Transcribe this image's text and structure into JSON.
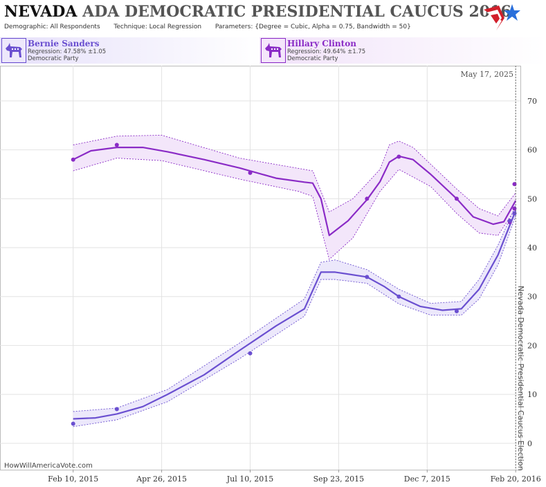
{
  "header": {
    "title_state": "NEVADA",
    "title_rest": "ADA DEMOCRATIC PRESIDENTIAL CAUCUS 2016",
    "demographic_label": "Demographic:",
    "demographic_value": "All Respondents",
    "technique_label": "Technique:",
    "technique_value": "Local Regression",
    "parameters_label": "Parameters:",
    "parameters_value": "{Degree = Cubic, Alpha = 0.75, Bandwidth = 50}"
  },
  "candidates": [
    {
      "name": "Bernie Sanders",
      "regression": "Regression: 47.58% ±1.05",
      "party": "Democratic Party",
      "color": "#6a4fd0"
    },
    {
      "name": "Hillary Clinton",
      "regression": "Regression: 49.64% ±1.75",
      "party": "Democratic Party",
      "color": "#8a2bc6"
    }
  ],
  "watermark": "HowWillAmericaVote.com",
  "chart_data": {
    "type": "line",
    "date_label": "May 17, 2025",
    "event_label": "Nevada Democratic Presidential Caucus Election",
    "event_date": "2016-02-20",
    "x_domain": [
      "2014-12-10",
      "2016-02-24"
    ],
    "xticks": [
      {
        "date": "2015-02-10",
        "label": "Feb 10, 2015"
      },
      {
        "date": "2015-04-26",
        "label": "Apr 26, 2015"
      },
      {
        "date": "2015-07-10",
        "label": "Jul 10, 2015"
      },
      {
        "date": "2015-09-23",
        "label": "Sep 23, 2015"
      },
      {
        "date": "2015-12-07",
        "label": "Dec 7, 2015"
      },
      {
        "date": "2016-02-20",
        "label": "Feb 20, 2016"
      }
    ],
    "ylim": [
      -5.4,
      77.2
    ],
    "yticks": [
      0,
      10,
      20,
      30,
      40,
      50,
      60,
      70
    ],
    "grid": true,
    "series": [
      {
        "name": "Hillary Clinton",
        "color": "#8a2bc6",
        "band_color": "#f3e6fa",
        "points": [
          {
            "date": "2015-02-10",
            "value": 58
          },
          {
            "date": "2015-03-19",
            "value": 61
          },
          {
            "date": "2015-07-10",
            "value": 55.3
          },
          {
            "date": "2015-10-17",
            "value": 50
          },
          {
            "date": "2015-11-13",
            "value": 58.6
          },
          {
            "date": "2016-01-01",
            "value": 50
          },
          {
            "date": "2016-02-15",
            "value": 45.2
          },
          {
            "date": "2016-02-19",
            "value": 53
          },
          {
            "date": "2016-02-19",
            "value": 48
          },
          {
            "date": "2016-02-19",
            "value": 47
          }
        ],
        "fit": [
          [
            "2015-02-10",
            58.0
          ],
          [
            "2015-02-25",
            59.8
          ],
          [
            "2015-03-19",
            60.5
          ],
          [
            "2015-04-10",
            60.5
          ],
          [
            "2015-05-01",
            59.6
          ],
          [
            "2015-06-01",
            58.0
          ],
          [
            "2015-07-01",
            56.3
          ],
          [
            "2015-08-01",
            54.2
          ],
          [
            "2015-08-25",
            53.4
          ],
          [
            "2015-09-01",
            53.2
          ],
          [
            "2015-09-08",
            50.0
          ],
          [
            "2015-09-15",
            42.5
          ],
          [
            "2015-10-01",
            45.5
          ],
          [
            "2015-10-17",
            49.8
          ],
          [
            "2015-10-28",
            53.5
          ],
          [
            "2015-11-05",
            57.5
          ],
          [
            "2015-11-13",
            58.7
          ],
          [
            "2015-11-25",
            58.0
          ],
          [
            "2015-12-10",
            55.0
          ],
          [
            "2016-01-01",
            50.0
          ],
          [
            "2016-01-15",
            46.3
          ],
          [
            "2016-02-01",
            44.8
          ],
          [
            "2016-02-10",
            45.3
          ],
          [
            "2016-02-20",
            49.6
          ]
        ],
        "band_upper": [
          [
            "2015-02-10",
            61.0
          ],
          [
            "2015-03-19",
            62.8
          ],
          [
            "2015-04-26",
            63.0
          ],
          [
            "2015-07-01",
            58.3
          ],
          [
            "2015-09-01",
            55.7
          ],
          [
            "2015-09-15",
            47.3
          ],
          [
            "2015-10-05",
            50.0
          ],
          [
            "2015-10-28",
            56.0
          ],
          [
            "2015-11-05",
            61.0
          ],
          [
            "2015-11-13",
            61.8
          ],
          [
            "2015-11-25",
            60.5
          ],
          [
            "2016-01-01",
            52.0
          ],
          [
            "2016-01-20",
            48.0
          ],
          [
            "2016-02-05",
            46.5
          ],
          [
            "2016-02-20",
            51.2
          ]
        ],
        "band_lower": [
          [
            "2015-02-10",
            55.7
          ],
          [
            "2015-03-19",
            58.3
          ],
          [
            "2015-04-26",
            57.8
          ],
          [
            "2015-07-01",
            54.0
          ],
          [
            "2015-08-20",
            51.5
          ],
          [
            "2015-09-01",
            50.5
          ],
          [
            "2015-09-15",
            37.6
          ],
          [
            "2015-10-05",
            42.0
          ],
          [
            "2015-10-28",
            51.5
          ],
          [
            "2015-11-13",
            56.0
          ],
          [
            "2015-12-10",
            52.5
          ],
          [
            "2016-01-01",
            47.0
          ],
          [
            "2016-01-20",
            43.0
          ],
          [
            "2016-02-05",
            42.5
          ],
          [
            "2016-02-20",
            48.0
          ]
        ]
      },
      {
        "name": "Bernie Sanders",
        "color": "#6a4fd0",
        "band_color": "#ece8fb",
        "points": [
          {
            "date": "2015-02-10",
            "value": 4
          },
          {
            "date": "2015-03-19",
            "value": 7
          },
          {
            "date": "2015-07-10",
            "value": 18.4
          },
          {
            "date": "2015-10-17",
            "value": 34
          },
          {
            "date": "2015-11-13",
            "value": 30
          },
          {
            "date": "2016-01-01",
            "value": 27
          },
          {
            "date": "2016-02-15",
            "value": 45.5
          },
          {
            "date": "2016-02-19",
            "value": 47
          }
        ],
        "fit": [
          [
            "2015-02-10",
            5.0
          ],
          [
            "2015-03-01",
            5.2
          ],
          [
            "2015-03-19",
            6.0
          ],
          [
            "2015-04-10",
            7.5
          ],
          [
            "2015-05-01",
            10.0
          ],
          [
            "2015-06-01",
            14.0
          ],
          [
            "2015-07-01",
            19.0
          ],
          [
            "2015-08-01",
            24.0
          ],
          [
            "2015-08-25",
            27.5
          ],
          [
            "2015-09-08",
            35.0
          ],
          [
            "2015-09-20",
            35.0
          ],
          [
            "2015-10-17",
            34.0
          ],
          [
            "2015-11-01",
            32.0
          ],
          [
            "2015-11-13",
            30.0
          ],
          [
            "2015-12-01",
            28.0
          ],
          [
            "2015-12-20",
            27.2
          ],
          [
            "2016-01-05",
            27.5
          ],
          [
            "2016-01-20",
            31.5
          ],
          [
            "2016-02-05",
            38.5
          ],
          [
            "2016-02-20",
            47.6
          ]
        ],
        "band_upper": [
          [
            "2015-02-10",
            6.5
          ],
          [
            "2015-03-19",
            7.2
          ],
          [
            "2015-05-01",
            11.0
          ],
          [
            "2015-07-01",
            20.5
          ],
          [
            "2015-08-25",
            29.5
          ],
          [
            "2015-09-08",
            37.0
          ],
          [
            "2015-09-20",
            37.5
          ],
          [
            "2015-10-17",
            35.5
          ],
          [
            "2015-11-13",
            31.5
          ],
          [
            "2015-12-10",
            28.6
          ],
          [
            "2016-01-05",
            29.0
          ],
          [
            "2016-01-20",
            33.5
          ],
          [
            "2016-02-05",
            40.5
          ],
          [
            "2016-02-20",
            48.6
          ]
        ],
        "band_lower": [
          [
            "2015-02-10",
            3.4
          ],
          [
            "2015-03-19",
            4.8
          ],
          [
            "2015-05-01",
            8.5
          ],
          [
            "2015-07-01",
            17.3
          ],
          [
            "2015-08-25",
            26.0
          ],
          [
            "2015-09-08",
            33.5
          ],
          [
            "2015-09-20",
            33.5
          ],
          [
            "2015-10-17",
            32.7
          ],
          [
            "2015-11-13",
            28.5
          ],
          [
            "2015-12-10",
            26.2
          ],
          [
            "2016-01-05",
            26.2
          ],
          [
            "2016-01-20",
            29.5
          ],
          [
            "2016-02-05",
            36.5
          ],
          [
            "2016-02-20",
            46.5
          ]
        ]
      }
    ]
  }
}
